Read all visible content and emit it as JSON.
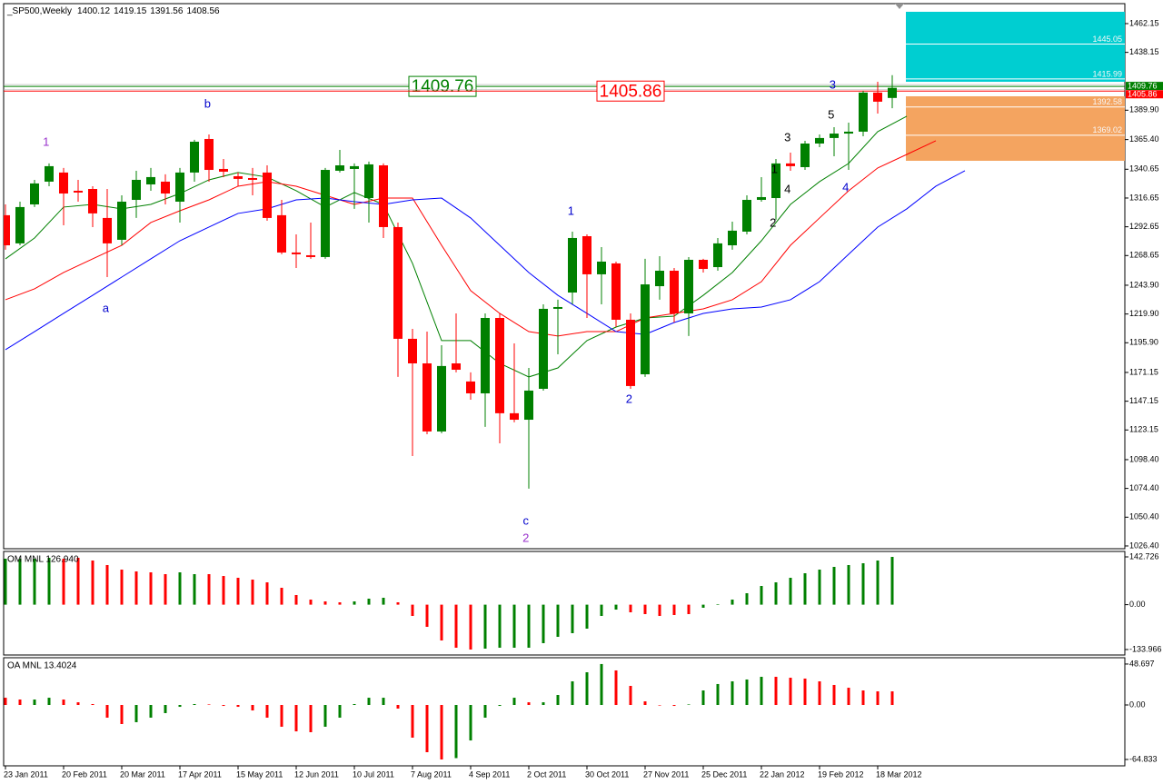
{
  "chart_data": [
    {
      "type": "candlestick",
      "title": "_SP500,Weekly",
      "categories": [
        "23 Jan 2011",
        null,
        null,
        null,
        "20 Feb 2011",
        null,
        null,
        null,
        "20 Mar 2011",
        null,
        null,
        null,
        "17 Apr 2011",
        null,
        null,
        null,
        "15 May 2011",
        null,
        null,
        null,
        "12 Jun 2011",
        null,
        null,
        null,
        "10 Jul 2011",
        null,
        null,
        null,
        "7 Aug 2011",
        null,
        null,
        null,
        "4 Sep 2011",
        null,
        null,
        null,
        "2 Oct 2011",
        null,
        null,
        null,
        "30 Oct 2011",
        null,
        null,
        null,
        "27 Nov 2011",
        null,
        null,
        null,
        "25 Dec 2011",
        null,
        null,
        null,
        "22 Jan 2012",
        null,
        null,
        null,
        "19 Feb 2012",
        null,
        null,
        null,
        "18 Mar 2012",
        null
      ],
      "open": [
        1302.3,
        1278.8,
        1311.3,
        1330.3,
        1337.9,
        1322.7,
        1324.2,
        1300.0,
        1281.8,
        1315.1,
        1328.0,
        1330.3,
        1313.6,
        1337.9,
        1365.9,
        1340.9,
        1334.8,
        1333.3,
        1337.9,
        1302.3,
        1271.2,
        1268.9,
        1267.4,
        1339.4,
        1340.9,
        1316.6,
        1343.9,
        1292.4,
        1199.2,
        1178.7,
        1121.9,
        1178.7,
        1163.6,
        1153.7,
        1216.6,
        1137.1,
        1131.7,
        1157.5,
        1224.2,
        1237.8,
        1284.8,
        1253.0,
        1262.1,
        1215.1,
        1169.6,
        1243.1,
        1256.0,
        1220.4,
        1265.1,
        1259.0,
        1277.2,
        1288.6,
        1315.1,
        1316.6,
        1345.5,
        1342.4,
        1362.1,
        1366.7,
        1370.4,
        1372.0,
        1404.6,
        1400.12
      ],
      "high": [
        1311.3,
        1313.6,
        1331.8,
        1345.5,
        1341.7,
        1331.8,
        1326.5,
        1324.2,
        1318.9,
        1339.4,
        1341.7,
        1336.4,
        1341.7,
        1365.2,
        1369.7,
        1349.2,
        1337.9,
        1341.7,
        1343.9,
        1315.1,
        1286.3,
        1296.2,
        1341.7,
        1356.8,
        1345.5,
        1347.0,
        1345.5,
        1296.2,
        1207.5,
        1205.2,
        1193.9,
        1220.4,
        1171.2,
        1220.4,
        1220.4,
        1195.4,
        1174.9,
        1228.0,
        1231.8,
        1288.6,
        1286.3,
        1275.7,
        1263.6,
        1220.4,
        1265.9,
        1268.1,
        1258.3,
        1267.4,
        1265.9,
        1283.3,
        1296.9,
        1318.9,
        1334.1,
        1349.2,
        1354.5,
        1364.4,
        1369.7,
        1375.7,
        1379.5,
        1406.1,
        1413.6,
        1419.15
      ],
      "low": [
        1273.5,
        1277.2,
        1309.1,
        1326.5,
        1293.9,
        1313.6,
        1292.4,
        1250.7,
        1277.2,
        1300.0,
        1322.7,
        1311.3,
        1296.2,
        1330.3,
        1330.3,
        1334.1,
        1326.5,
        1318.9,
        1297.7,
        1269.7,
        1258.3,
        1265.9,
        1265.9,
        1337.9,
        1307.6,
        1296.2,
        1283.3,
        1167.4,
        1101.4,
        1119.6,
        1120.4,
        1171.2,
        1148.4,
        1125.7,
        1112.0,
        1129.5,
        1074.2,
        1156.0,
        1186.3,
        1228.0,
        1216.6,
        1228.0,
        1209.0,
        1157.5,
        1167.4,
        1231.8,
        1212.8,
        1201.5,
        1254.5,
        1256.0,
        1273.5,
        1286.3,
        1313.6,
        1298.5,
        1339.4,
        1340.1,
        1359.1,
        1351.5,
        1340.1,
        1368.2,
        1387.1,
        1391.56
      ],
      "close": [
        1277.2,
        1309.1,
        1328.8,
        1343.2,
        1320.4,
        1321.2,
        1303.8,
        1278.8,
        1313.6,
        1331.8,
        1334.1,
        1320.4,
        1337.9,
        1363.6,
        1340.1,
        1338.6,
        1332.6,
        1331.8,
        1300.0,
        1271.2,
        1269.7,
        1267.4,
        1340.1,
        1343.9,
        1343.2,
        1344.7,
        1292.4,
        1199.2,
        1178.7,
        1121.9,
        1176.5,
        1173.4,
        1153.7,
        1216.6,
        1137.1,
        1131.7,
        1156.0,
        1224.2,
        1225.7,
        1283.3,
        1253.0,
        1263.6,
        1215.1,
        1159.8,
        1244.6,
        1256.0,
        1220.4,
        1265.1,
        1257.5,
        1278.8,
        1289.4,
        1315.1,
        1317.4,
        1345.5,
        1343.2,
        1362.1,
        1366.7,
        1370.4,
        1372.0,
        1404.6,
        1397.0,
        1408.56
      ],
      "up_color": "#008000",
      "down_color": "#ff0000",
      "ylim": [
        1024.1,
        1478.8
      ],
      "yticks": [
        {
          "value": 1462.15,
          "label": "1462.15"
        },
        {
          "value": 1438.15,
          "label": "1438.15"
        },
        {
          "value": 1389.9,
          "label": "1389.90"
        },
        {
          "value": 1365.4,
          "label": "1365.40"
        },
        {
          "value": 1340.65,
          "label": "1340.65"
        },
        {
          "value": 1316.65,
          "label": "1316.65"
        },
        {
          "value": 1292.65,
          "label": "1292.65"
        },
        {
          "value": 1268.65,
          "label": "1268.65"
        },
        {
          "value": 1243.9,
          "label": "1243.90"
        },
        {
          "value": 1219.9,
          "label": "1219.90"
        },
        {
          "value": 1195.9,
          "label": "1195.90"
        },
        {
          "value": 1171.15,
          "label": "1171.15"
        },
        {
          "value": 1147.15,
          "label": "1147.15"
        },
        {
          "value": 1123.15,
          "label": "1123.15"
        },
        {
          "value": 1098.4,
          "label": "1098.40"
        },
        {
          "value": 1074.4,
          "label": "1074.40"
        },
        {
          "value": 1050.4,
          "label": "1050.40"
        },
        {
          "value": 1026.4,
          "label": "1026.40"
        }
      ],
      "lines": [
        {
          "color": "#008000",
          "x": [
            0,
            2,
            4,
            6,
            8,
            10,
            12,
            14,
            16,
            18,
            20,
            22,
            24,
            26,
            28,
            30,
            32,
            34,
            36,
            38,
            40,
            42,
            44,
            46,
            48,
            50,
            52,
            54,
            56,
            58,
            60,
            62
          ],
          "values": [
            1265.9,
            1283.3,
            1309.1,
            1311.3,
            1307.6,
            1311.3,
            1320.4,
            1331.8,
            1337.9,
            1334.1,
            1322.7,
            1309.1,
            1321.2,
            1311.3,
            1262.1,
            1197.7,
            1197.7,
            1178.7,
            1167.4,
            1174.9,
            1197.7,
            1209.0,
            1216.6,
            1218.1,
            1235.5,
            1254.5,
            1281.0,
            1311.3,
            1330.3,
            1345.5,
            1372.0,
            1384.9
          ]
        },
        {
          "color": "#ff0000",
          "x": [
            0,
            2,
            4,
            6,
            8,
            10,
            12,
            14,
            16,
            18,
            20,
            22,
            24,
            26,
            28,
            30,
            32,
            34,
            36,
            38,
            40,
            42,
            44,
            46,
            48,
            50,
            52,
            54,
            56,
            58,
            60,
            62,
            64
          ],
          "values": [
            1231.8,
            1240.9,
            1254.5,
            1265.9,
            1277.2,
            1296.2,
            1306.0,
            1315.1,
            1326.5,
            1330.3,
            1326.5,
            1318.9,
            1311.3,
            1316.6,
            1316.6,
            1277.2,
            1239.4,
            1220.4,
            1205.2,
            1201.5,
            1205.2,
            1205.2,
            1216.6,
            1220.4,
            1224.2,
            1231.8,
            1246.9,
            1277.2,
            1300.0,
            1322.7,
            1341.7,
            1353.0,
            1364.4
          ]
        },
        {
          "color": "#0000ff",
          "x": [
            0,
            2,
            4,
            6,
            8,
            10,
            12,
            14,
            16,
            18,
            20,
            22,
            24,
            26,
            28,
            30,
            32,
            34,
            36,
            38,
            40,
            42,
            44,
            46,
            48,
            50,
            52,
            54,
            56,
            58,
            60,
            62,
            64,
            66
          ],
          "values": [
            1190.1,
            1205.2,
            1220.4,
            1235.5,
            1250.7,
            1265.9,
            1281.0,
            1292.4,
            1303.8,
            1307.6,
            1315.1,
            1316.6,
            1313.6,
            1311.3,
            1315.1,
            1316.6,
            1300.0,
            1277.2,
            1254.5,
            1235.5,
            1220.4,
            1205.2,
            1202.9,
            1212.8,
            1220.4,
            1224.2,
            1225.7,
            1231.8,
            1246.9,
            1269.7,
            1292.4,
            1307.6,
            1326.5,
            1339.4
          ]
        }
      ],
      "levels": [
        {
          "value": 1409.76,
          "color": "#008000"
        },
        {
          "value": 1405.86,
          "color": "#ff0000"
        }
      ],
      "zones": [
        {
          "top": 1472.0,
          "bottom": 1413.6,
          "color": "#00ced1",
          "levels": [
            1445.05,
            1415.99
          ]
        },
        {
          "top": 1401.5,
          "bottom": 1347.7,
          "color": "#f4a460",
          "levels": [
            1392.58,
            1369.02
          ]
        }
      ],
      "annotations": [
        {
          "text": "1",
          "color": "#9932cc",
          "x": 2.8,
          "y": 1362.9
        },
        {
          "text": "b",
          "color": "#0000cd",
          "x": 13.9,
          "y": 1394.7
        },
        {
          "text": "a",
          "color": "#0000cd",
          "x": 6.9,
          "y": 1224.2
        },
        {
          "text": "c",
          "color": "#0000cd",
          "x": 35.8,
          "y": 1046.9
        },
        {
          "text": "2",
          "color": "#9932cc",
          "x": 35.8,
          "y": 1032.5
        },
        {
          "text": "1",
          "color": "#0000cd",
          "x": 38.9,
          "y": 1305.3
        },
        {
          "text": "2",
          "color": "#0000cd",
          "x": 42.9,
          "y": 1148.4
        },
        {
          "text": "1",
          "color": "#000000",
          "x": 52.9,
          "y": 1340.1
        },
        {
          "text": "2",
          "color": "#000000",
          "x": 52.8,
          "y": 1295.4
        },
        {
          "text": "3",
          "color": "#000000",
          "x": 53.8,
          "y": 1366.7
        },
        {
          "text": "4",
          "color": "#000000",
          "x": 53.8,
          "y": 1323.5
        },
        {
          "text": "5",
          "color": "#000000",
          "x": 56.8,
          "y": 1385.6
        },
        {
          "text": "3",
          "color": "#0000cd",
          "x": 56.9,
          "y": 1410.6
        },
        {
          "text": "4",
          "color": "#0000cd",
          "x": 57.8,
          "y": 1325.0
        }
      ]
    },
    {
      "type": "bar",
      "title": "OM MNL 126.940",
      "values": [
        137.3,
        137.3,
        137.3,
        140.0,
        137.3,
        140.0,
        131.9,
        118.3,
        104.7,
        99.3,
        96.6,
        91.2,
        96.6,
        91.2,
        91.2,
        85.7,
        80.3,
        74.9,
        66.7,
        50.5,
        28.8,
        15.2,
        9.8,
        7.1,
        9.8,
        17.9,
        20.6,
        7.1,
        -33.6,
        -66.2,
        -106.9,
        -128.6,
        -133.966,
        -131.3,
        -128.6,
        -128.6,
        -128.6,
        -115.0,
        -96.0,
        -85.2,
        -71.6,
        -33.6,
        -14.7,
        -22.8,
        -28.2,
        -33.6,
        -30.9,
        -28.2,
        -9.2,
        1.6,
        15.2,
        34.2,
        55.9,
        66.7,
        80.3,
        93.9,
        104.7,
        112.9,
        118.3,
        123.7,
        131.9,
        142.726
      ],
      "colors": [
        "#008000",
        "#008000",
        "#008000",
        "#008000",
        "#ff0000",
        "#ff0000",
        "#ff0000",
        "#ff0000",
        "#ff0000",
        "#ff0000",
        "#ff0000",
        "#ff0000",
        "#008000",
        "#008000",
        "#ff0000",
        "#ff0000",
        "#ff0000",
        "#ff0000",
        "#ff0000",
        "#ff0000",
        "#ff0000",
        "#ff0000",
        "#ff0000",
        "#ff0000",
        "#008000",
        "#008000",
        "#008000",
        "#ff0000",
        "#ff0000",
        "#ff0000",
        "#ff0000",
        "#ff0000",
        "#ff0000",
        "#008000",
        "#008000",
        "#008000",
        "#008000",
        "#008000",
        "#008000",
        "#008000",
        "#008000",
        "#008000",
        "#008000",
        "#ff0000",
        "#ff0000",
        "#ff0000",
        "#ff0000",
        "#ff0000",
        "#008000",
        "#008000",
        "#008000",
        "#008000",
        "#008000",
        "#008000",
        "#008000",
        "#008000",
        "#008000",
        "#008000",
        "#008000",
        "#008000",
        "#008000",
        "#008000"
      ],
      "ylim": [
        -150.3,
        159.0
      ],
      "yticks": [
        142.726,
        {
          "value": 0,
          "label": "0.00"
        },
        -133.966
      ]
    },
    {
      "type": "bar",
      "title": "OA MNL 13.4024",
      "values": [
        8.6,
        6.5,
        6.5,
        8.6,
        6.5,
        3.2,
        1.1,
        -15.1,
        -22.7,
        -20.5,
        -15.1,
        -9.7,
        -2.2,
        1.1,
        0.6,
        -1.1,
        -2.2,
        -6.5,
        -15.1,
        -25.9,
        -31.4,
        -32.4,
        -25.9,
        -15.1,
        1.1,
        8.6,
        8.6,
        -4.3,
        -38.9,
        -56.2,
        -64.833,
        -63.2,
        -42.2,
        -15.1,
        -1.1,
        8.6,
        3.2,
        3.2,
        11.9,
        28.1,
        38.9,
        48.697,
        41.1,
        22.7,
        4.3,
        -0.6,
        -1.1,
        0.6,
        17.3,
        24.9,
        28.1,
        30.3,
        33.5,
        33.5,
        32.4,
        31.4,
        28.1,
        23.8,
        20.5,
        17.3,
        16.2,
        16.2
      ],
      "colors": [
        "#ff0000",
        "#ff0000",
        "#008000",
        "#008000",
        "#ff0000",
        "#ff0000",
        "#ff0000",
        "#ff0000",
        "#ff0000",
        "#008000",
        "#008000",
        "#008000",
        "#008000",
        "#008000",
        "#ff0000",
        "#ff0000",
        "#ff0000",
        "#ff0000",
        "#ff0000",
        "#ff0000",
        "#ff0000",
        "#ff0000",
        "#008000",
        "#008000",
        "#008000",
        "#008000",
        "#008000",
        "#ff0000",
        "#ff0000",
        "#ff0000",
        "#ff0000",
        "#008000",
        "#008000",
        "#008000",
        "#008000",
        "#008000",
        "#ff0000",
        "#008000",
        "#008000",
        "#008000",
        "#008000",
        "#008000",
        "#ff0000",
        "#ff0000",
        "#ff0000",
        "#ff0000",
        "#ff0000",
        "#008000",
        "#008000",
        "#008000",
        "#008000",
        "#008000",
        "#008000",
        "#ff0000",
        "#ff0000",
        "#ff0000",
        "#ff0000",
        "#ff0000",
        "#ff0000",
        "#ff0000",
        "#ff0000",
        "#ff0000"
      ],
      "ylim": [
        -72.4,
        56.2
      ],
      "yticks": [
        48.697,
        {
          "value": 0,
          "label": "0.00"
        },
        -64.833
      ]
    }
  ]
}
